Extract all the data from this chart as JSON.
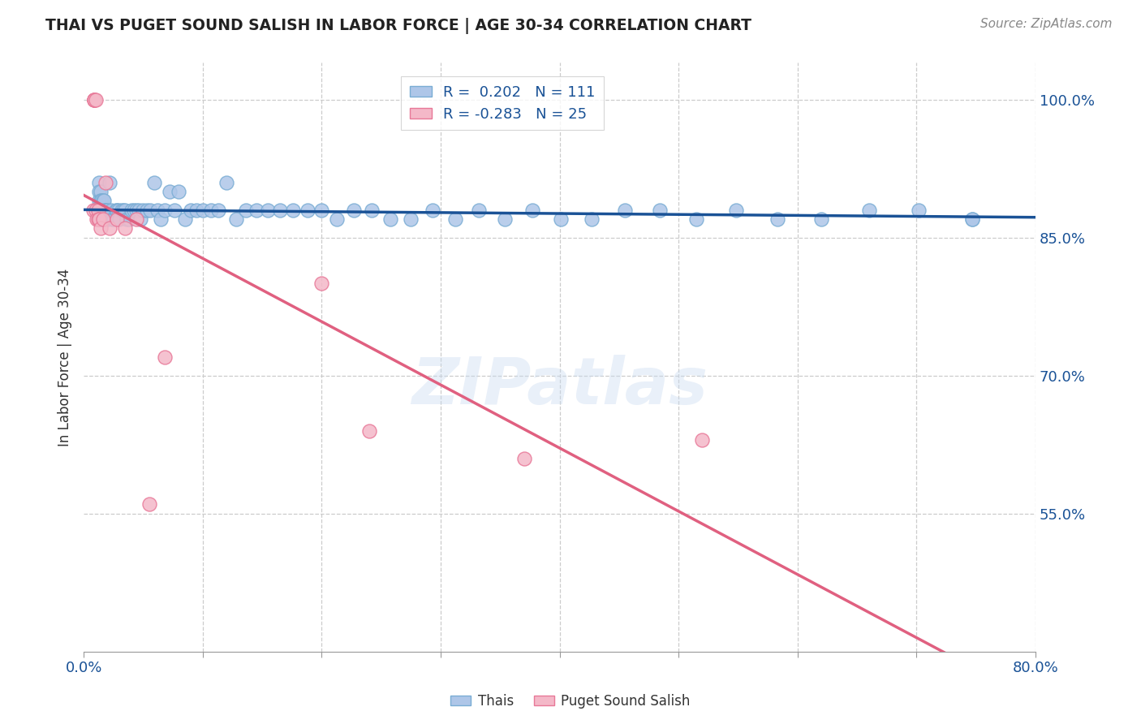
{
  "title": "THAI VS PUGET SOUND SALISH IN LABOR FORCE | AGE 30-34 CORRELATION CHART",
  "source": "Source: ZipAtlas.com",
  "ylabel": "In Labor Force | Age 30-34",
  "xlim": [
    0.0,
    0.8
  ],
  "ylim": [
    0.4,
    1.04
  ],
  "x_ticks": [
    0.0,
    0.1,
    0.2,
    0.3,
    0.4,
    0.5,
    0.6,
    0.7,
    0.8
  ],
  "y_ticks_right": [
    0.55,
    0.7,
    0.85,
    1.0
  ],
  "y_tick_labels_right": [
    "55.0%",
    "70.0%",
    "85.0%",
    "100.0%"
  ],
  "watermark": "ZIPatlas",
  "thai_color": "#aec6e8",
  "thai_edge_color": "#7aadd4",
  "puget_color": "#f4b8c8",
  "puget_edge_color": "#e87898",
  "trendline_thai_color": "#1a5296",
  "trendline_puget_color": "#e06080",
  "thai_x": [
    0.013,
    0.013,
    0.013,
    0.013,
    0.013,
    0.013,
    0.013,
    0.013,
    0.014,
    0.014,
    0.014,
    0.014,
    0.014,
    0.014,
    0.015,
    0.015,
    0.015,
    0.015,
    0.016,
    0.016,
    0.016,
    0.016,
    0.017,
    0.017,
    0.017,
    0.018,
    0.018,
    0.019,
    0.019,
    0.02,
    0.02,
    0.022,
    0.023,
    0.024,
    0.025,
    0.027,
    0.028,
    0.029,
    0.03,
    0.032,
    0.033,
    0.035,
    0.036,
    0.038,
    0.04,
    0.042,
    0.044,
    0.046,
    0.048,
    0.05,
    0.053,
    0.056,
    0.059,
    0.062,
    0.065,
    0.068,
    0.072,
    0.076,
    0.08,
    0.085,
    0.09,
    0.095,
    0.1,
    0.107,
    0.113,
    0.12,
    0.128,
    0.136,
    0.145,
    0.155,
    0.165,
    0.176,
    0.188,
    0.2,
    0.213,
    0.227,
    0.242,
    0.258,
    0.275,
    0.293,
    0.312,
    0.332,
    0.354,
    0.377,
    0.401,
    0.427,
    0.455,
    0.484,
    0.515,
    0.548,
    0.583,
    0.62,
    0.66,
    0.702,
    0.747,
    0.747
  ],
  "thai_y": [
    0.91,
    0.9,
    0.89,
    0.88,
    0.87,
    0.87,
    0.87,
    0.87,
    0.9,
    0.89,
    0.88,
    0.87,
    0.87,
    0.87,
    0.89,
    0.88,
    0.87,
    0.87,
    0.89,
    0.88,
    0.87,
    0.87,
    0.89,
    0.88,
    0.87,
    0.88,
    0.87,
    0.88,
    0.87,
    0.88,
    0.87,
    0.91,
    0.88,
    0.87,
    0.87,
    0.88,
    0.88,
    0.88,
    0.87,
    0.88,
    0.88,
    0.88,
    0.87,
    0.87,
    0.88,
    0.88,
    0.88,
    0.88,
    0.87,
    0.88,
    0.88,
    0.88,
    0.91,
    0.88,
    0.87,
    0.88,
    0.9,
    0.88,
    0.9,
    0.87,
    0.88,
    0.88,
    0.88,
    0.88,
    0.88,
    0.91,
    0.87,
    0.88,
    0.88,
    0.88,
    0.88,
    0.88,
    0.88,
    0.88,
    0.87,
    0.88,
    0.88,
    0.87,
    0.87,
    0.88,
    0.87,
    0.88,
    0.87,
    0.88,
    0.87,
    0.87,
    0.88,
    0.88,
    0.87,
    0.88,
    0.87,
    0.87,
    0.88,
    0.88,
    0.87,
    0.87
  ],
  "puget_x": [
    0.008,
    0.009,
    0.009,
    0.009,
    0.009,
    0.01,
    0.01,
    0.011,
    0.012,
    0.012,
    0.013,
    0.014,
    0.016,
    0.018,
    0.022,
    0.028,
    0.035,
    0.044,
    0.055,
    0.068,
    0.2,
    0.24,
    0.37,
    0.52
  ],
  "puget_y": [
    0.88,
    1.0,
    1.0,
    1.0,
    1.0,
    1.0,
    0.88,
    0.87,
    0.88,
    0.87,
    0.87,
    0.86,
    0.87,
    0.91,
    0.86,
    0.87,
    0.86,
    0.87,
    0.56,
    0.72,
    0.8,
    0.64,
    0.61,
    0.63
  ]
}
